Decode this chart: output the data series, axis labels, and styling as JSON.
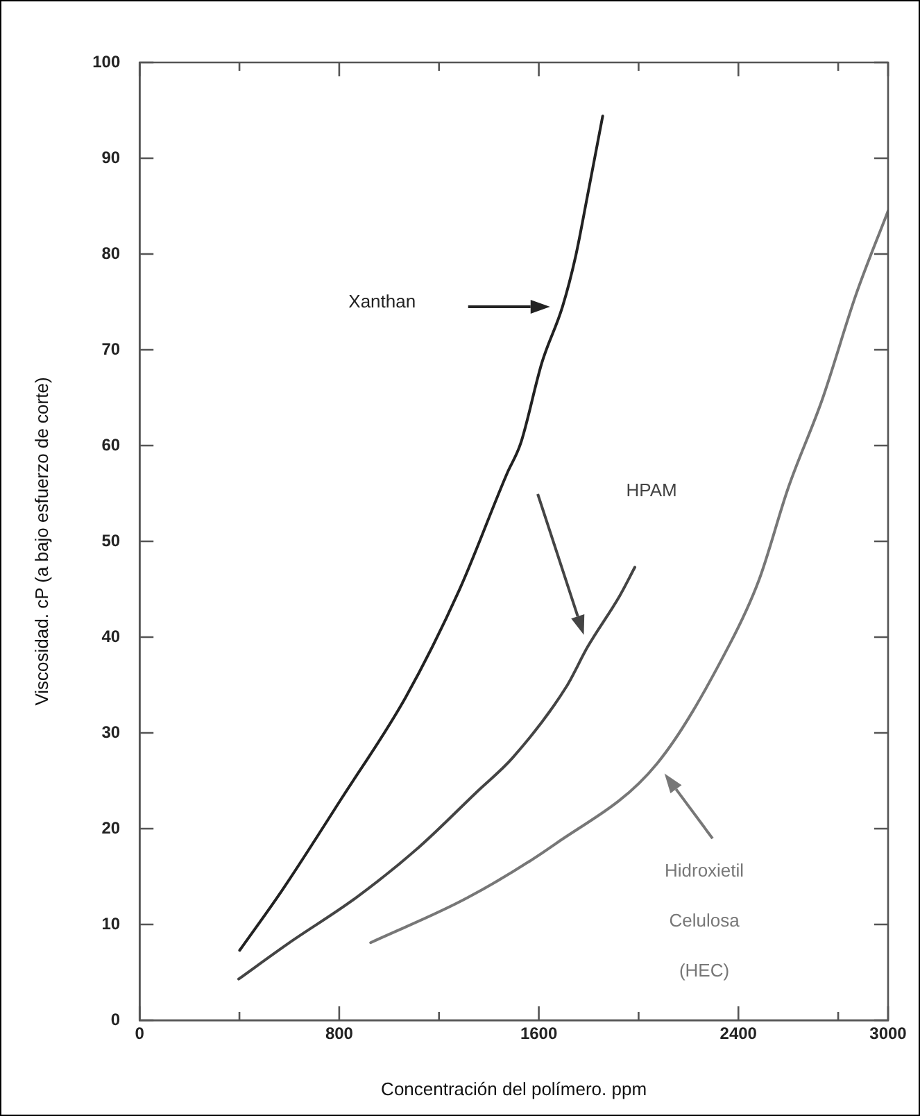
{
  "chart_data": {
    "type": "line",
    "xlabel": "Concentración del polímero. ppm",
    "ylabel": "Viscosidad. cP (a bajo esfuerzo de corte)",
    "xlim": [
      0,
      3000
    ],
    "ylim": [
      0,
      100
    ],
    "xticks": [
      0,
      {
        "value": 400,
        "label": null
      },
      800,
      {
        "value": 1200,
        "label": null
      },
      1600,
      {
        "value": 2000,
        "label": null
      },
      2400,
      {
        "value": 2800,
        "label": null
      },
      3000
    ],
    "yticks": [
      0,
      10,
      20,
      30,
      40,
      50,
      60,
      70,
      80,
      90,
      100
    ],
    "grid": false,
    "legend": false,
    "marker": "none",
    "line_style": "solid",
    "series": [
      {
        "name": "Xanthan",
        "color": "#222222",
        "x": [
          401,
          572,
          808,
          1066,
          1281,
          1473,
          1527,
          1613,
          1695,
          1748,
          1796,
          1856
        ],
        "values": [
          7.3,
          13.6,
          23.1,
          33.7,
          44.9,
          57.1,
          60.2,
          68.7,
          74.5,
          79.8,
          86.2,
          94.4
        ]
      },
      {
        "name": "HPAM",
        "color": "#444444",
        "x": [
          397,
          595,
          868,
          1121,
          1354,
          1495,
          1710,
          1796,
          1924,
          1985
        ],
        "values": [
          4.3,
          8.0,
          12.8,
          18.1,
          23.9,
          27.4,
          34.8,
          39.0,
          44.3,
          47.3
        ]
      },
      {
        "name": "Hidroxietil Celulosa (HEC)",
        "color": "#777777",
        "x": [
          926,
          1315,
          1666,
          2074,
          2366,
          2483,
          2600,
          2736,
          2872,
          3000
        ],
        "values": [
          8.1,
          12.8,
          18.4,
          26.8,
          39.3,
          46.0,
          55.6,
          64.8,
          75.8,
          84.5
        ]
      }
    ]
  }
}
